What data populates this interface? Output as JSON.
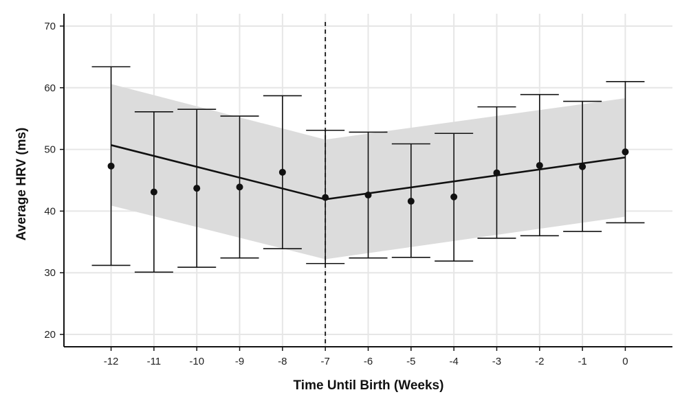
{
  "chart_data": {
    "type": "scatter",
    "title": "",
    "xlabel": "Time Until Birth (Weeks)",
    "ylabel": "Average HRV (ms)",
    "xlim": [
      -13.1,
      1.1
    ],
    "ylim": [
      18,
      72
    ],
    "x_ticks": [
      -12,
      -11,
      -10,
      -9,
      -8,
      -7,
      -6,
      -5,
      -4,
      -3,
      -2,
      -1,
      0
    ],
    "y_ticks": [
      20,
      30,
      40,
      50,
      60,
      70
    ],
    "grid": true,
    "vertical_reference_line_x": -7,
    "series": [
      {
        "kind": "points_with_error_bars",
        "x": [
          -12,
          -11,
          -10,
          -9,
          -8,
          -7,
          -6,
          -5,
          -4,
          -3,
          -2,
          -1,
          0
        ],
        "y": [
          47.3,
          43.1,
          43.7,
          43.9,
          46.3,
          42.2,
          42.6,
          41.6,
          42.3,
          46.2,
          47.4,
          47.2,
          49.6
        ],
        "lower": [
          31.2,
          30.1,
          30.9,
          32.4,
          33.9,
          31.5,
          32.4,
          32.5,
          31.9,
          35.6,
          36.0,
          36.7,
          38.1
        ],
        "upper": [
          63.4,
          56.1,
          56.5,
          55.4,
          58.7,
          53.1,
          52.8,
          50.9,
          52.6,
          56.9,
          58.9,
          57.8,
          61.0
        ]
      },
      {
        "kind": "fitted_line",
        "x": [
          -12,
          -7,
          -7,
          0
        ],
        "y": [
          50.7,
          41.9,
          41.9,
          48.7
        ]
      },
      {
        "kind": "confidence_band",
        "x": [
          -12,
          -7,
          -7,
          0
        ],
        "lower": [
          40.9,
          32.2,
          32.2,
          39.1
        ],
        "upper": [
          60.6,
          51.6,
          51.6,
          58.3
        ]
      }
    ],
    "colors": {
      "points": "#111111",
      "line": "#111111",
      "band": "#dcdcdc",
      "grid": "#e6e6e6",
      "axis": "#111111"
    }
  }
}
